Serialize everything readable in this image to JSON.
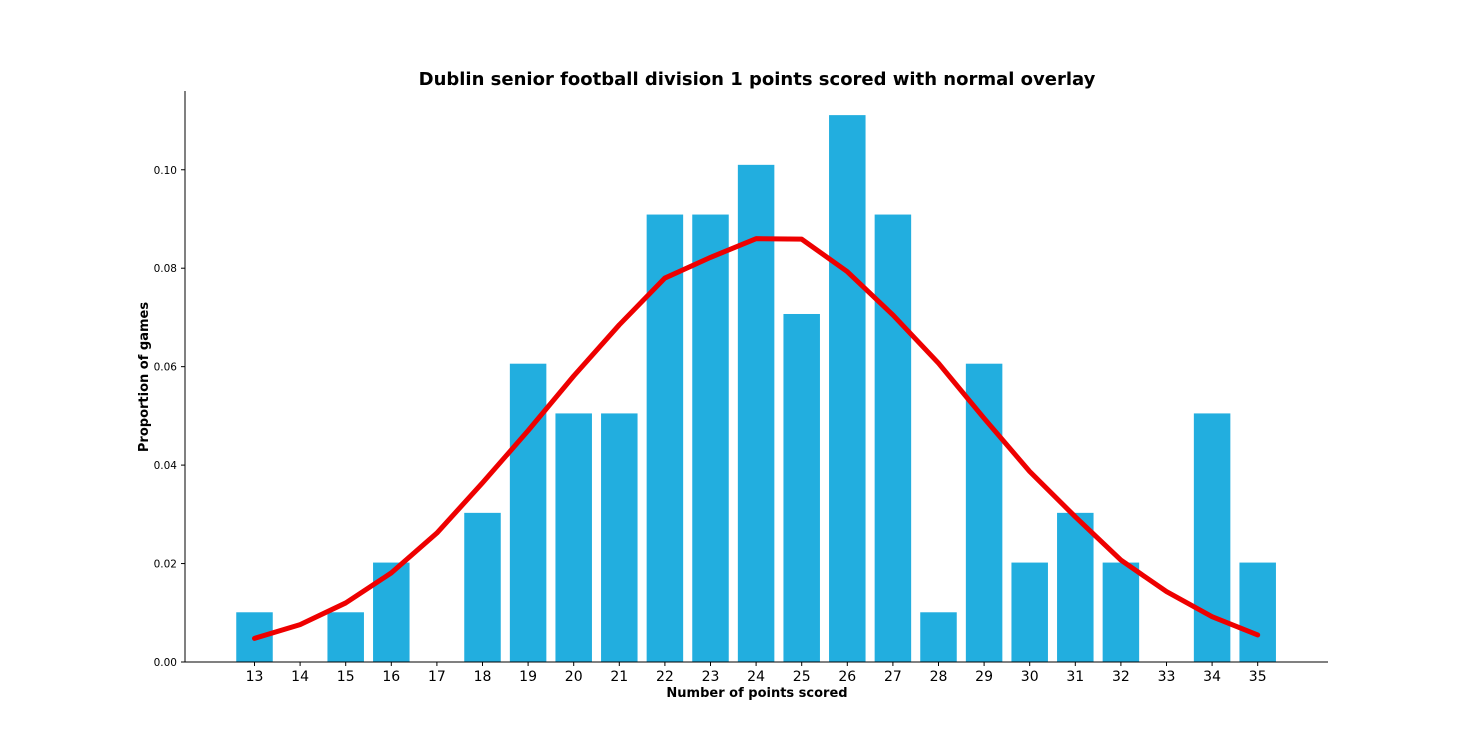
{
  "chart_data": {
    "type": "bar",
    "title": "Dublin senior football division 1 points scored with normal overlay",
    "xlabel": "Number of points scored",
    "ylabel": "Proportion of games",
    "ylim": [
      0,
      0.116
    ],
    "yticks": [
      "0.00",
      "0.02",
      "0.04",
      "0.06",
      "0.08",
      "0.10"
    ],
    "grid": false,
    "bar_color": "#22aedf",
    "line_color": "#ee0000",
    "categories": [
      "13",
      "14",
      "15",
      "16",
      "17",
      "18",
      "19",
      "20",
      "21",
      "22",
      "23",
      "24",
      "25",
      "26",
      "27",
      "28",
      "29",
      "30",
      "31",
      "32",
      "33",
      "34",
      "35"
    ],
    "values": [
      0.0101,
      0.0,
      0.0101,
      0.0202,
      0.0,
      0.0303,
      0.0606,
      0.0505,
      0.0505,
      0.0909,
      0.0909,
      0.101,
      0.0707,
      0.1111,
      0.0909,
      0.0101,
      0.0606,
      0.0202,
      0.0303,
      0.0202,
      0.0,
      0.0505,
      0.0202
    ],
    "overlay": {
      "type": "line",
      "values": [
        0.0048,
        0.0076,
        0.012,
        0.0181,
        0.0262,
        0.0364,
        0.047,
        0.0581,
        0.0685,
        0.078,
        0.0822,
        0.086,
        0.0859,
        0.0793,
        0.0705,
        0.0607,
        0.0495,
        0.0387,
        0.0295,
        0.0207,
        0.0143,
        0.0092,
        0.0055
      ]
    }
  }
}
